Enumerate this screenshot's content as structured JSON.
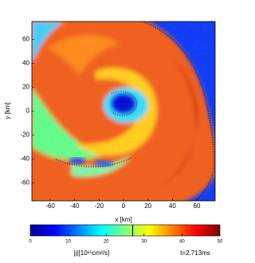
{
  "chart_data": {
    "type": "heatmap",
    "xlabel": "x [km]",
    "ylabel": "y [km]",
    "xlim": [
      -75,
      75
    ],
    "ylim": [
      -75,
      75
    ],
    "xticks": [
      -60,
      -40,
      -20,
      0,
      20,
      40,
      60
    ],
    "yticks": [
      -60,
      -40,
      -20,
      0,
      20,
      40,
      60
    ],
    "colormap": "jet",
    "colorbar": {
      "label": "|j|[10¹⁵cm²/s]",
      "lim": [
        0,
        50
      ],
      "ticks": [
        0,
        10,
        20,
        30,
        40,
        50
      ],
      "marker": 27
    },
    "annotation": "t=2.713ms"
  }
}
